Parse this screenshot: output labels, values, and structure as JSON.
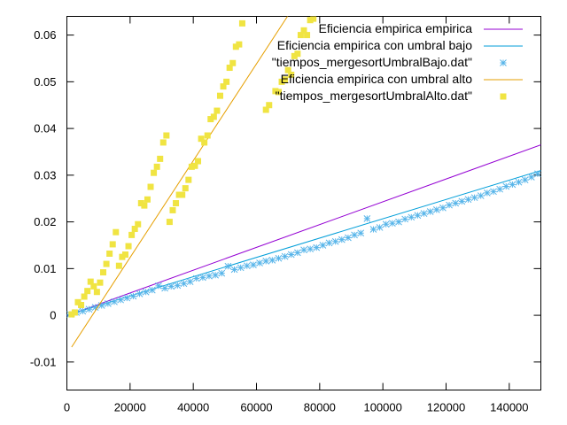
{
  "chart_data": {
    "type": "scatter",
    "title": "",
    "xlabel": "",
    "ylabel": "",
    "xlim": [
      0,
      150000
    ],
    "ylim": [
      -0.016,
      0.064
    ],
    "grid": false,
    "legend_position": "top-right",
    "x_ticks": [
      0,
      20000,
      40000,
      60000,
      80000,
      100000,
      120000,
      140000
    ],
    "x_tick_labels": [
      "0",
      "20000",
      "40000",
      "60000",
      "80000",
      "100000",
      "120000",
      "140000"
    ],
    "y_ticks": [
      -0.01,
      0,
      0.01,
      0.02,
      0.03,
      0.04,
      0.05,
      0.06
    ],
    "y_tick_labels": [
      "-0.01",
      "0",
      "0.01",
      "0.02",
      "0.03",
      "0.04",
      "0.05",
      "0.06"
    ],
    "series": [
      {
        "name": "Eficiencia empirica empirica",
        "kind": "line",
        "color": "#9400d3",
        "x": [
          0,
          150000
        ],
        "y": [
          -0.0001,
          0.0365
        ]
      },
      {
        "name": "Eficiencia empirica con umbral bajo",
        "kind": "line",
        "color": "#009ed9",
        "x": [
          0,
          150000
        ],
        "y": [
          0,
          0.031
        ]
      },
      {
        "name": "\"tiempos_mergesortUmbralBajo.dat\"",
        "kind": "scatter",
        "marker": "asterisk",
        "color": "#56b4e9",
        "x": [
          1000,
          3000,
          5000,
          7000,
          9000,
          11000,
          13000,
          15000,
          17000,
          19000,
          21000,
          23000,
          25000,
          27000,
          29000,
          31000,
          33000,
          35000,
          37000,
          39000,
          41000,
          43000,
          45000,
          47000,
          49000,
          51000,
          53000,
          55000,
          57000,
          59000,
          61000,
          63000,
          65000,
          67000,
          69000,
          71000,
          73000,
          75000,
          77000,
          79000,
          81000,
          83000,
          85000,
          87000,
          89000,
          91000,
          93000,
          95000,
          97000,
          99000,
          101000,
          103000,
          105000,
          107000,
          109000,
          111000,
          113000,
          115000,
          117000,
          119000,
          121000,
          123000,
          125000,
          127000,
          129000,
          131000,
          133000,
          135000,
          137000,
          139000,
          141000,
          143000,
          145000,
          147000,
          149000
        ],
        "y": [
          0.0002,
          0.0006,
          0.0009,
          0.0013,
          0.0017,
          0.0021,
          0.0025,
          0.0029,
          0.0033,
          0.0037,
          0.0041,
          0.0046,
          0.005,
          0.0054,
          0.0063,
          0.0058,
          0.0062,
          0.0064,
          0.0068,
          0.0072,
          0.0079,
          0.0081,
          0.0084,
          0.0086,
          0.009,
          0.0105,
          0.0098,
          0.0102,
          0.0106,
          0.0108,
          0.0112,
          0.0116,
          0.0118,
          0.0122,
          0.0126,
          0.013,
          0.0134,
          0.014,
          0.0142,
          0.0145,
          0.015,
          0.0155,
          0.0158,
          0.0162,
          0.0166,
          0.0172,
          0.0176,
          0.0207,
          0.0184,
          0.0188,
          0.0195,
          0.0197,
          0.02,
          0.0206,
          0.021,
          0.0214,
          0.0218,
          0.0222,
          0.0226,
          0.023,
          0.0236,
          0.024,
          0.0244,
          0.0248,
          0.0252,
          0.0256,
          0.0262,
          0.0265,
          0.027,
          0.0276,
          0.028,
          0.0285,
          0.029,
          0.0296,
          0.0303
        ]
      },
      {
        "name": "Eficiencia empirica con umbral alto",
        "kind": "line",
        "color": "#e69f00",
        "x": [
          1500,
          70000
        ],
        "y": [
          -0.0068,
          0.0642
        ]
      },
      {
        "name": "\"tiempos_mergesortUmbralAlto.dat\"",
        "kind": "scatter",
        "marker": "filled-square",
        "color": "#f0e442",
        "x": [
          1500,
          2500,
          3500,
          4500,
          5500,
          6500,
          7500,
          8500,
          9500,
          10500,
          11500,
          12500,
          13500,
          14500,
          15500,
          16500,
          17500,
          18500,
          19500,
          20500,
          21500,
          22500,
          23500,
          24500,
          25500,
          26500,
          27500,
          28500,
          29500,
          30500,
          31500,
          32500,
          33500,
          34500,
          35500,
          36500,
          37500,
          38500,
          39500,
          40500,
          41500,
          42500,
          43500,
          44500,
          45500,
          46500,
          47500,
          48500,
          49500,
          50500,
          51500,
          52500,
          53500,
          54500,
          55500,
          63000,
          64000,
          66000,
          67000,
          68000,
          69000,
          70000,
          71000,
          72000,
          73000,
          74000,
          75000,
          76000,
          77000,
          78000
        ],
        "y": [
          0.0002,
          0.0006,
          0.0028,
          0.0022,
          0.004,
          0.0052,
          0.0072,
          0.0062,
          0.005,
          0.007,
          0.0092,
          0.011,
          0.0132,
          0.0152,
          0.0178,
          0.0106,
          0.0125,
          0.013,
          0.0148,
          0.0172,
          0.0185,
          0.0195,
          0.024,
          0.0235,
          0.0248,
          0.0275,
          0.0305,
          0.0318,
          0.0335,
          0.037,
          0.0385,
          0.02,
          0.0225,
          0.024,
          0.0258,
          0.0258,
          0.0272,
          0.029,
          0.0318,
          0.032,
          0.033,
          0.0378,
          0.037,
          0.0385,
          0.042,
          0.0425,
          0.0438,
          0.047,
          0.049,
          0.05,
          0.053,
          0.054,
          0.0575,
          0.058,
          0.0625,
          0.044,
          0.045,
          0.048,
          0.0478,
          0.05,
          0.0505,
          0.0525,
          0.0515,
          0.0555,
          0.056,
          0.06,
          0.061,
          0.06,
          0.0632,
          0.0635
        ]
      }
    ]
  }
}
